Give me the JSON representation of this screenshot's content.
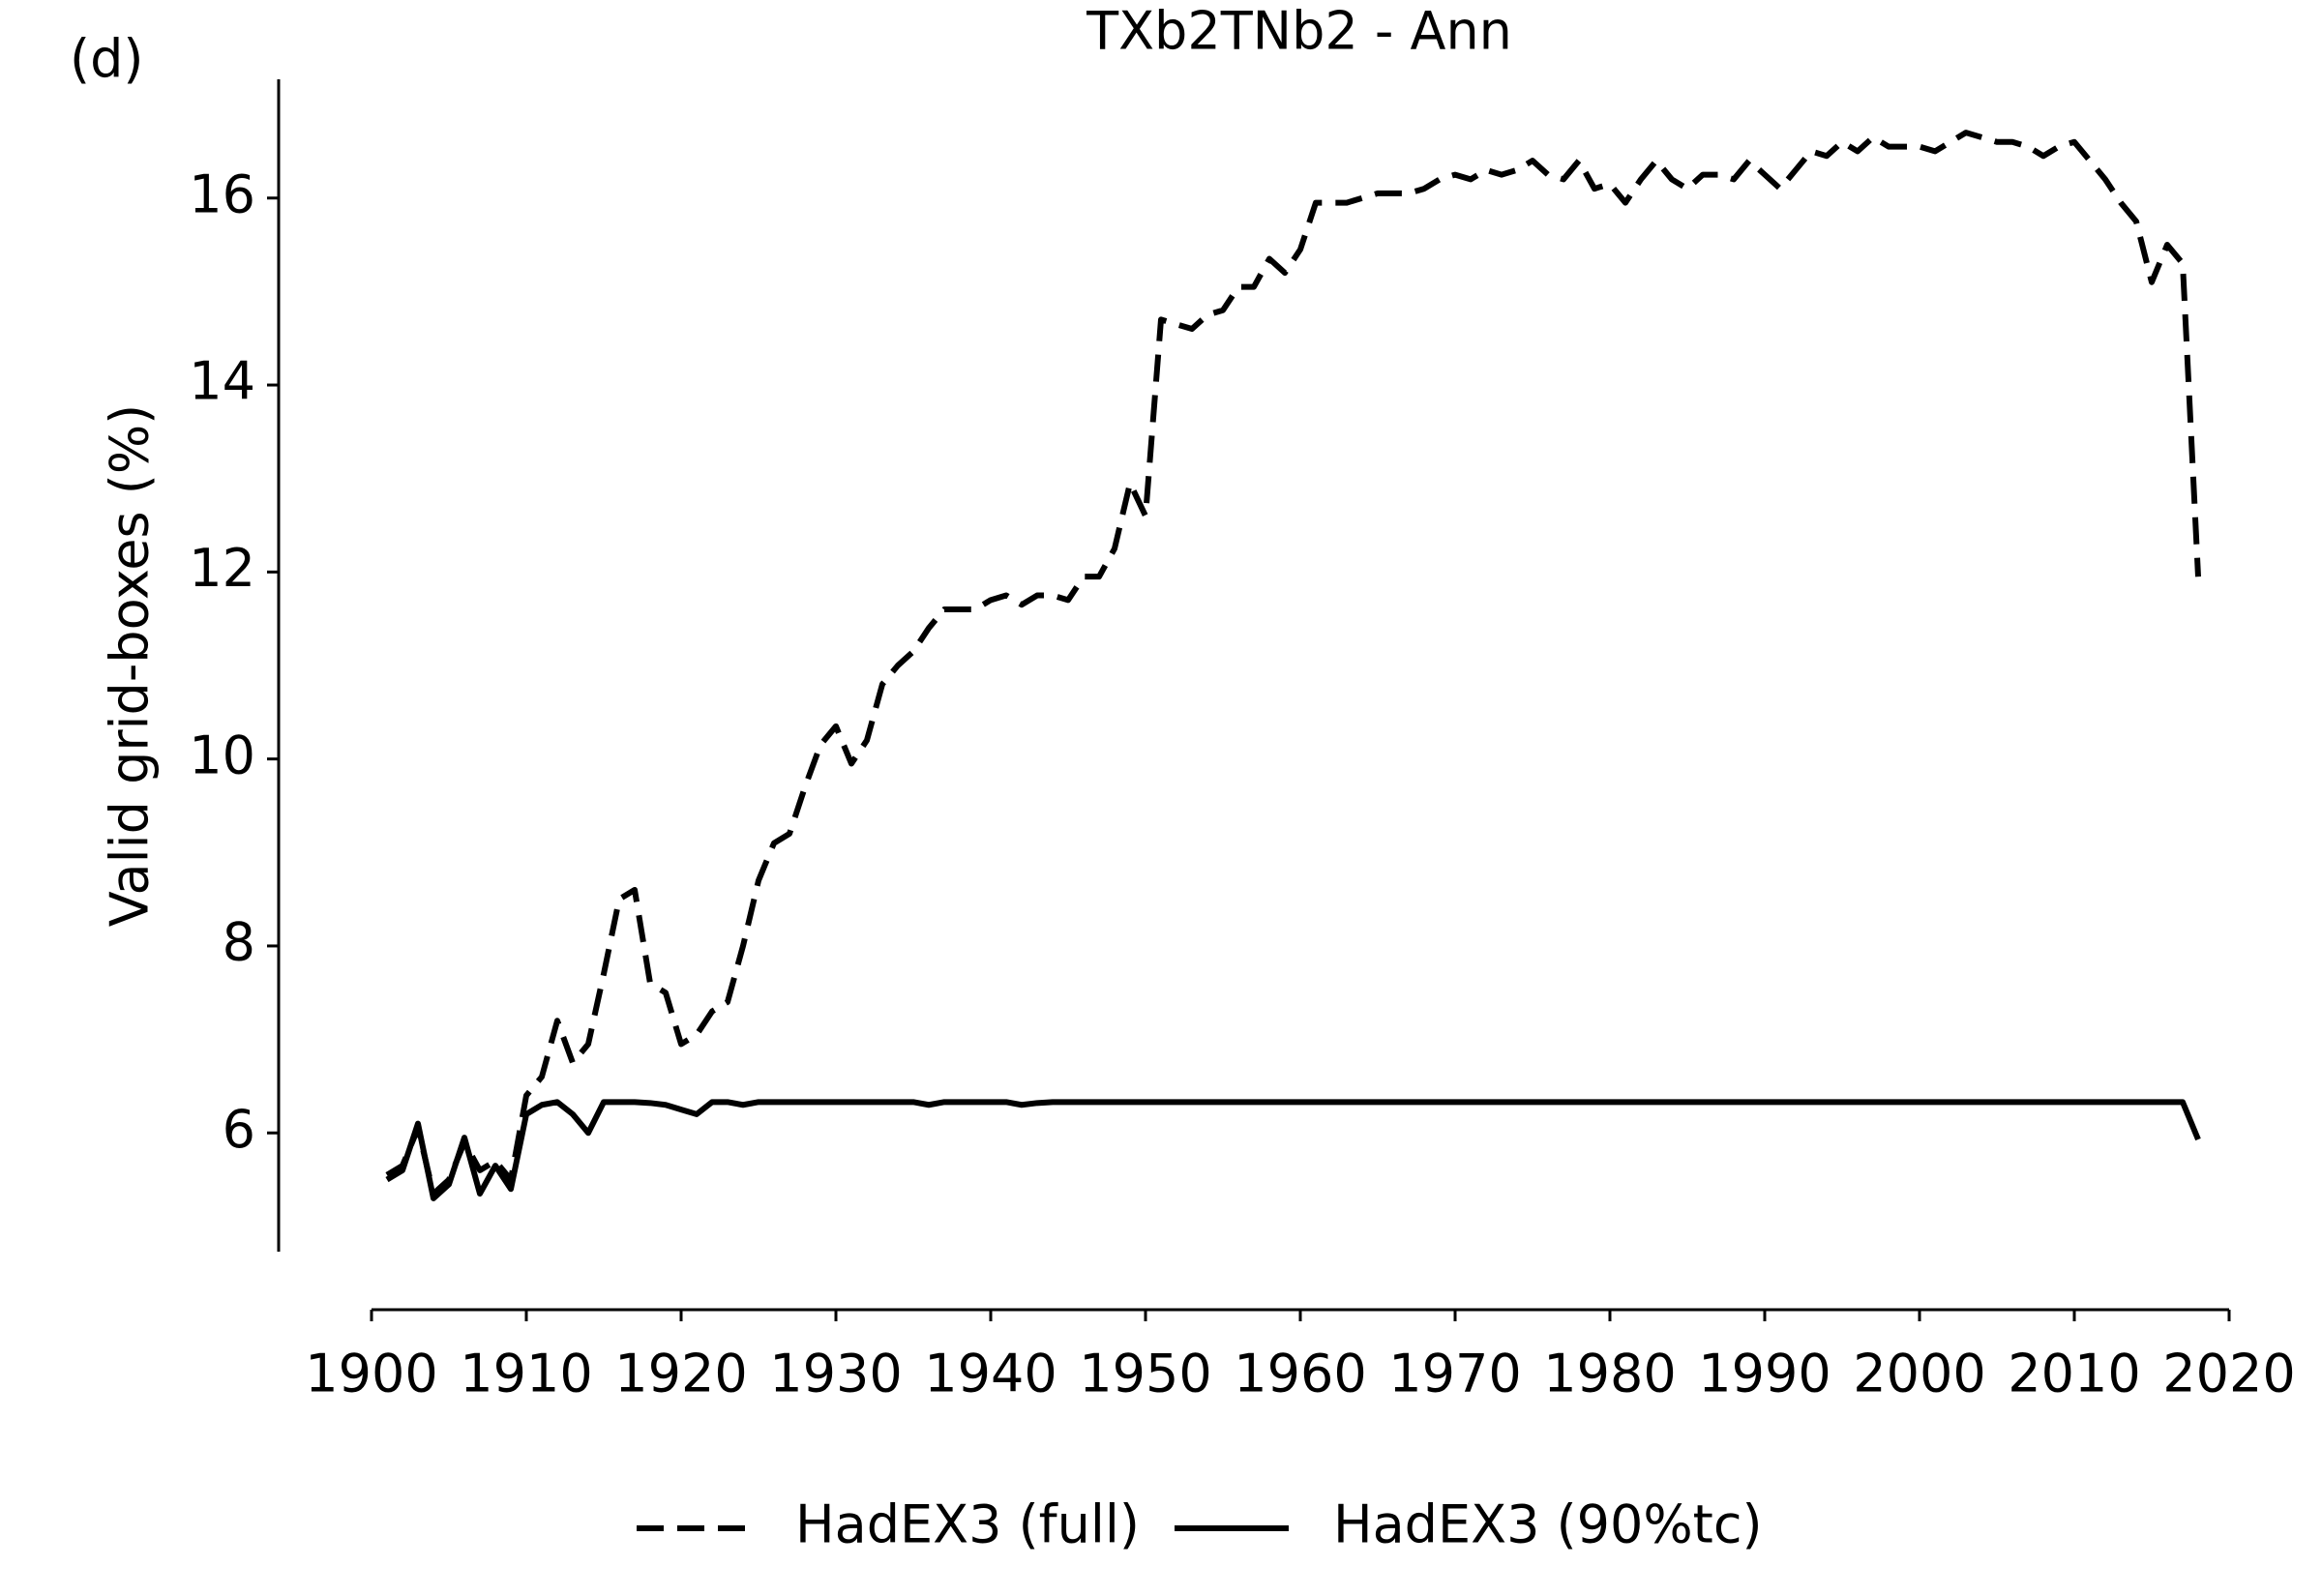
{
  "chart_data": {
    "type": "line",
    "title": "TXb2TNb2 - Ann",
    "panel_label": "(d)",
    "y_label": "Valid grid-boxes (%)",
    "x": [
      1901,
      1902,
      1903,
      1904,
      1905,
      1906,
      1907,
      1908,
      1909,
      1910,
      1911,
      1912,
      1913,
      1914,
      1915,
      1916,
      1917,
      1918,
      1919,
      1920,
      1921,
      1922,
      1923,
      1924,
      1925,
      1926,
      1927,
      1928,
      1929,
      1930,
      1931,
      1932,
      1933,
      1934,
      1935,
      1936,
      1937,
      1938,
      1939,
      1940,
      1941,
      1942,
      1943,
      1944,
      1945,
      1946,
      1947,
      1948,
      1949,
      1950,
      1951,
      1952,
      1953,
      1954,
      1955,
      1956,
      1957,
      1958,
      1959,
      1960,
      1961,
      1962,
      1963,
      1964,
      1965,
      1966,
      1967,
      1968,
      1969,
      1970,
      1971,
      1972,
      1973,
      1974,
      1975,
      1976,
      1977,
      1978,
      1979,
      1980,
      1981,
      1982,
      1983,
      1984,
      1985,
      1986,
      1987,
      1988,
      1989,
      1990,
      1991,
      1992,
      1993,
      1994,
      1995,
      1996,
      1997,
      1998,
      1999,
      2000,
      2001,
      2002,
      2003,
      2004,
      2005,
      2006,
      2007,
      2008,
      2009,
      2010,
      2011,
      2012,
      2013,
      2014,
      2015,
      2016,
      2017,
      2018
    ],
    "series": [
      {
        "name": "HadEX3 (full)",
        "color": "#000000",
        "dashed": true,
        "values": [
          5.55,
          5.65,
          6.05,
          5.35,
          5.5,
          5.9,
          5.6,
          5.7,
          5.5,
          6.4,
          6.6,
          7.2,
          6.75,
          6.95,
          7.7,
          8.5,
          8.6,
          7.6,
          7.5,
          6.95,
          7.05,
          7.3,
          7.4,
          8.0,
          8.7,
          9.1,
          9.2,
          9.7,
          10.15,
          10.35,
          9.95,
          10.2,
          10.8,
          11.0,
          11.15,
          11.4,
          11.6,
          11.6,
          11.6,
          11.7,
          11.75,
          11.65,
          11.75,
          11.75,
          11.7,
          11.95,
          11.95,
          12.25,
          12.95,
          12.6,
          14.7,
          14.65,
          14.6,
          14.75,
          14.8,
          15.05,
          15.05,
          15.35,
          15.2,
          15.45,
          15.95,
          15.95,
          15.95,
          16.0,
          16.05,
          16.05,
          16.05,
          16.1,
          16.2,
          16.25,
          16.2,
          16.3,
          16.25,
          16.3,
          16.4,
          16.25,
          16.2,
          16.4,
          16.1,
          16.15,
          15.95,
          16.2,
          16.4,
          16.2,
          16.1,
          16.25,
          16.25,
          16.2,
          16.4,
          16.25,
          16.1,
          16.3,
          16.5,
          16.45,
          16.6,
          16.5,
          16.65,
          16.55,
          16.55,
          16.55,
          16.5,
          16.6,
          16.7,
          16.65,
          16.6,
          16.6,
          16.55,
          16.45,
          16.55,
          16.6,
          16.4,
          16.2,
          15.95,
          15.75,
          15.1,
          15.5,
          15.3,
          11.95
        ]
      },
      {
        "name": "HadEX3 (90%tc)",
        "color": "#000000",
        "dashed": false,
        "values": [
          5.5,
          5.6,
          6.1,
          5.3,
          5.45,
          5.95,
          5.35,
          5.65,
          5.4,
          6.2,
          6.3,
          6.33,
          6.2,
          6.0,
          6.33,
          6.33,
          6.33,
          6.32,
          6.3,
          6.25,
          6.2,
          6.33,
          6.33,
          6.3,
          6.33,
          6.33,
          6.33,
          6.33,
          6.33,
          6.33,
          6.33,
          6.33,
          6.33,
          6.33,
          6.33,
          6.3,
          6.33,
          6.33,
          6.33,
          6.33,
          6.33,
          6.3,
          6.32,
          6.33,
          6.33,
          6.33,
          6.33,
          6.33,
          6.33,
          6.33,
          6.33,
          6.33,
          6.33,
          6.33,
          6.33,
          6.33,
          6.33,
          6.33,
          6.33,
          6.33,
          6.33,
          6.33,
          6.33,
          6.33,
          6.33,
          6.33,
          6.33,
          6.33,
          6.33,
          6.33,
          6.33,
          6.33,
          6.33,
          6.33,
          6.33,
          6.33,
          6.33,
          6.33,
          6.33,
          6.33,
          6.33,
          6.33,
          6.33,
          6.33,
          6.33,
          6.33,
          6.33,
          6.33,
          6.33,
          6.33,
          6.33,
          6.33,
          6.33,
          6.33,
          6.33,
          6.33,
          6.33,
          6.33,
          6.33,
          6.33,
          6.33,
          6.33,
          6.33,
          6.33,
          6.33,
          6.33,
          6.33,
          6.33,
          6.33,
          6.33,
          6.33,
          6.33,
          6.33,
          6.33,
          6.33,
          6.33,
          6.33,
          5.93
        ]
      }
    ],
    "xlim": [
      1900,
      2020
    ],
    "xticks": [
      1900,
      1910,
      1920,
      1930,
      1940,
      1950,
      1960,
      1970,
      1980,
      1990,
      2000,
      2010,
      2020
    ],
    "ylim": [
      4.73,
      17.27
    ],
    "yticks": [
      6,
      8,
      10,
      12,
      14,
      16
    ],
    "legend": "bottom"
  }
}
